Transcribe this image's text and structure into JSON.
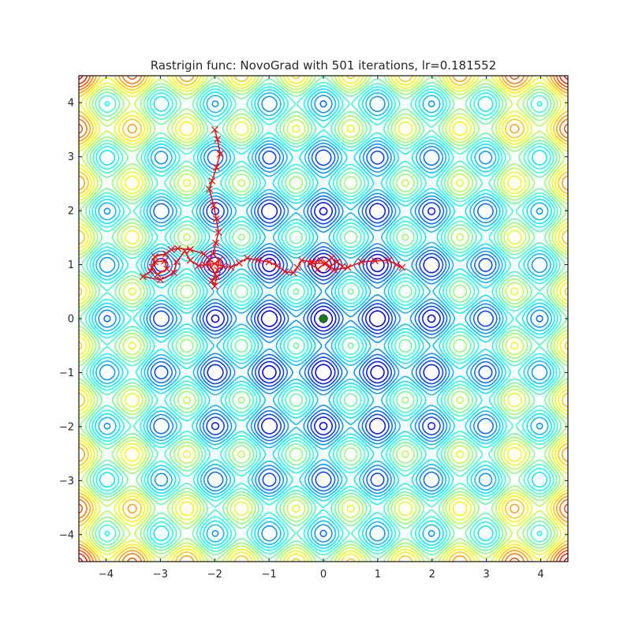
{
  "chart_data": {
    "type": "contour",
    "title": "Rastrigin func: NovoGrad with 501 iterations, lr=0.181552",
    "xlabel": "",
    "ylabel": "",
    "xlim": [
      -4.5,
      4.5
    ],
    "ylim": [
      -4.5,
      4.5
    ],
    "x_ticks": [
      -4,
      -3,
      -2,
      -1,
      0,
      1,
      2,
      3,
      4
    ],
    "y_ticks": [
      -4,
      -3,
      -2,
      -1,
      0,
      1,
      2,
      3,
      4
    ],
    "x_tick_labels": [
      "−4",
      "−3",
      "−2",
      "−1",
      "0",
      "1",
      "2",
      "3",
      "4"
    ],
    "y_tick_labels": [
      "−4",
      "−3",
      "−2",
      "−1",
      "0",
      "1",
      "2",
      "3",
      "4"
    ],
    "grid": false,
    "colormap": "jet",
    "function": "Rastrigin",
    "iterations": 501,
    "lr": 0.181552,
    "global_minimum": {
      "x": 0,
      "y": 0,
      "marker": "diamond",
      "color": "#1a7a1a"
    },
    "trajectory": {
      "color": "#ee1111",
      "marker": "x",
      "start": [
        -2.0,
        3.5
      ],
      "points": [
        [
          -2.0,
          3.5
        ],
        [
          -1.95,
          3.32
        ],
        [
          -1.9,
          3.05
        ],
        [
          -1.97,
          2.8
        ],
        [
          -2.05,
          2.55
        ],
        [
          -2.1,
          2.4
        ],
        [
          -2.02,
          2.1
        ],
        [
          -1.97,
          1.85
        ],
        [
          -1.93,
          1.6
        ],
        [
          -1.98,
          1.4
        ],
        [
          -2.03,
          1.2
        ],
        [
          -1.92,
          1.08
        ],
        [
          -1.95,
          0.9
        ],
        [
          -2.05,
          0.7
        ],
        [
          -2.0,
          0.6
        ],
        [
          -1.96,
          0.78
        ],
        [
          -2.07,
          0.95
        ],
        [
          -2.1,
          1.1
        ],
        [
          -2.2,
          1.2
        ],
        [
          -2.45,
          1.28
        ],
        [
          -2.68,
          1.3
        ],
        [
          -2.8,
          1.28
        ],
        [
          -2.9,
          1.2
        ],
        [
          -3.1,
          1.15
        ],
        [
          -3.15,
          0.95
        ],
        [
          -3.05,
          0.82
        ],
        [
          -2.88,
          0.92
        ],
        [
          -2.92,
          1.07
        ],
        [
          -3.1,
          1.05
        ],
        [
          -3.18,
          0.88
        ],
        [
          -3.32,
          0.78
        ],
        [
          -3.0,
          0.72
        ],
        [
          -2.75,
          0.85
        ],
        [
          -2.7,
          1.05
        ],
        [
          -2.55,
          1.25
        ],
        [
          -2.45,
          1.08
        ],
        [
          -2.3,
          0.98
        ],
        [
          -2.18,
          1.0
        ],
        [
          -2.0,
          1.02
        ],
        [
          -1.85,
          0.97
        ],
        [
          -1.7,
          0.95
        ],
        [
          -1.55,
          1.03
        ],
        [
          -1.4,
          1.12
        ],
        [
          -1.2,
          1.08
        ],
        [
          -1.0,
          1.05
        ],
        [
          -0.85,
          0.98
        ],
        [
          -0.7,
          0.87
        ],
        [
          -0.55,
          0.85
        ],
        [
          -0.48,
          0.95
        ],
        [
          -0.4,
          1.08
        ],
        [
          -0.2,
          1.05
        ],
        [
          -0.05,
          1.08
        ],
        [
          0.1,
          0.95
        ],
        [
          0.25,
          1.05
        ],
        [
          0.35,
          0.97
        ],
        [
          0.15,
          1.12
        ],
        [
          -0.1,
          0.92
        ],
        [
          -0.25,
          1.02
        ],
        [
          0.05,
          1.03
        ],
        [
          0.2,
          0.9
        ],
        [
          0.45,
          0.95
        ],
        [
          0.7,
          1.05
        ],
        [
          0.95,
          1.07
        ],
        [
          1.2,
          1.08
        ],
        [
          1.35,
          1.0
        ],
        [
          1.45,
          0.95
        ]
      ]
    }
  }
}
